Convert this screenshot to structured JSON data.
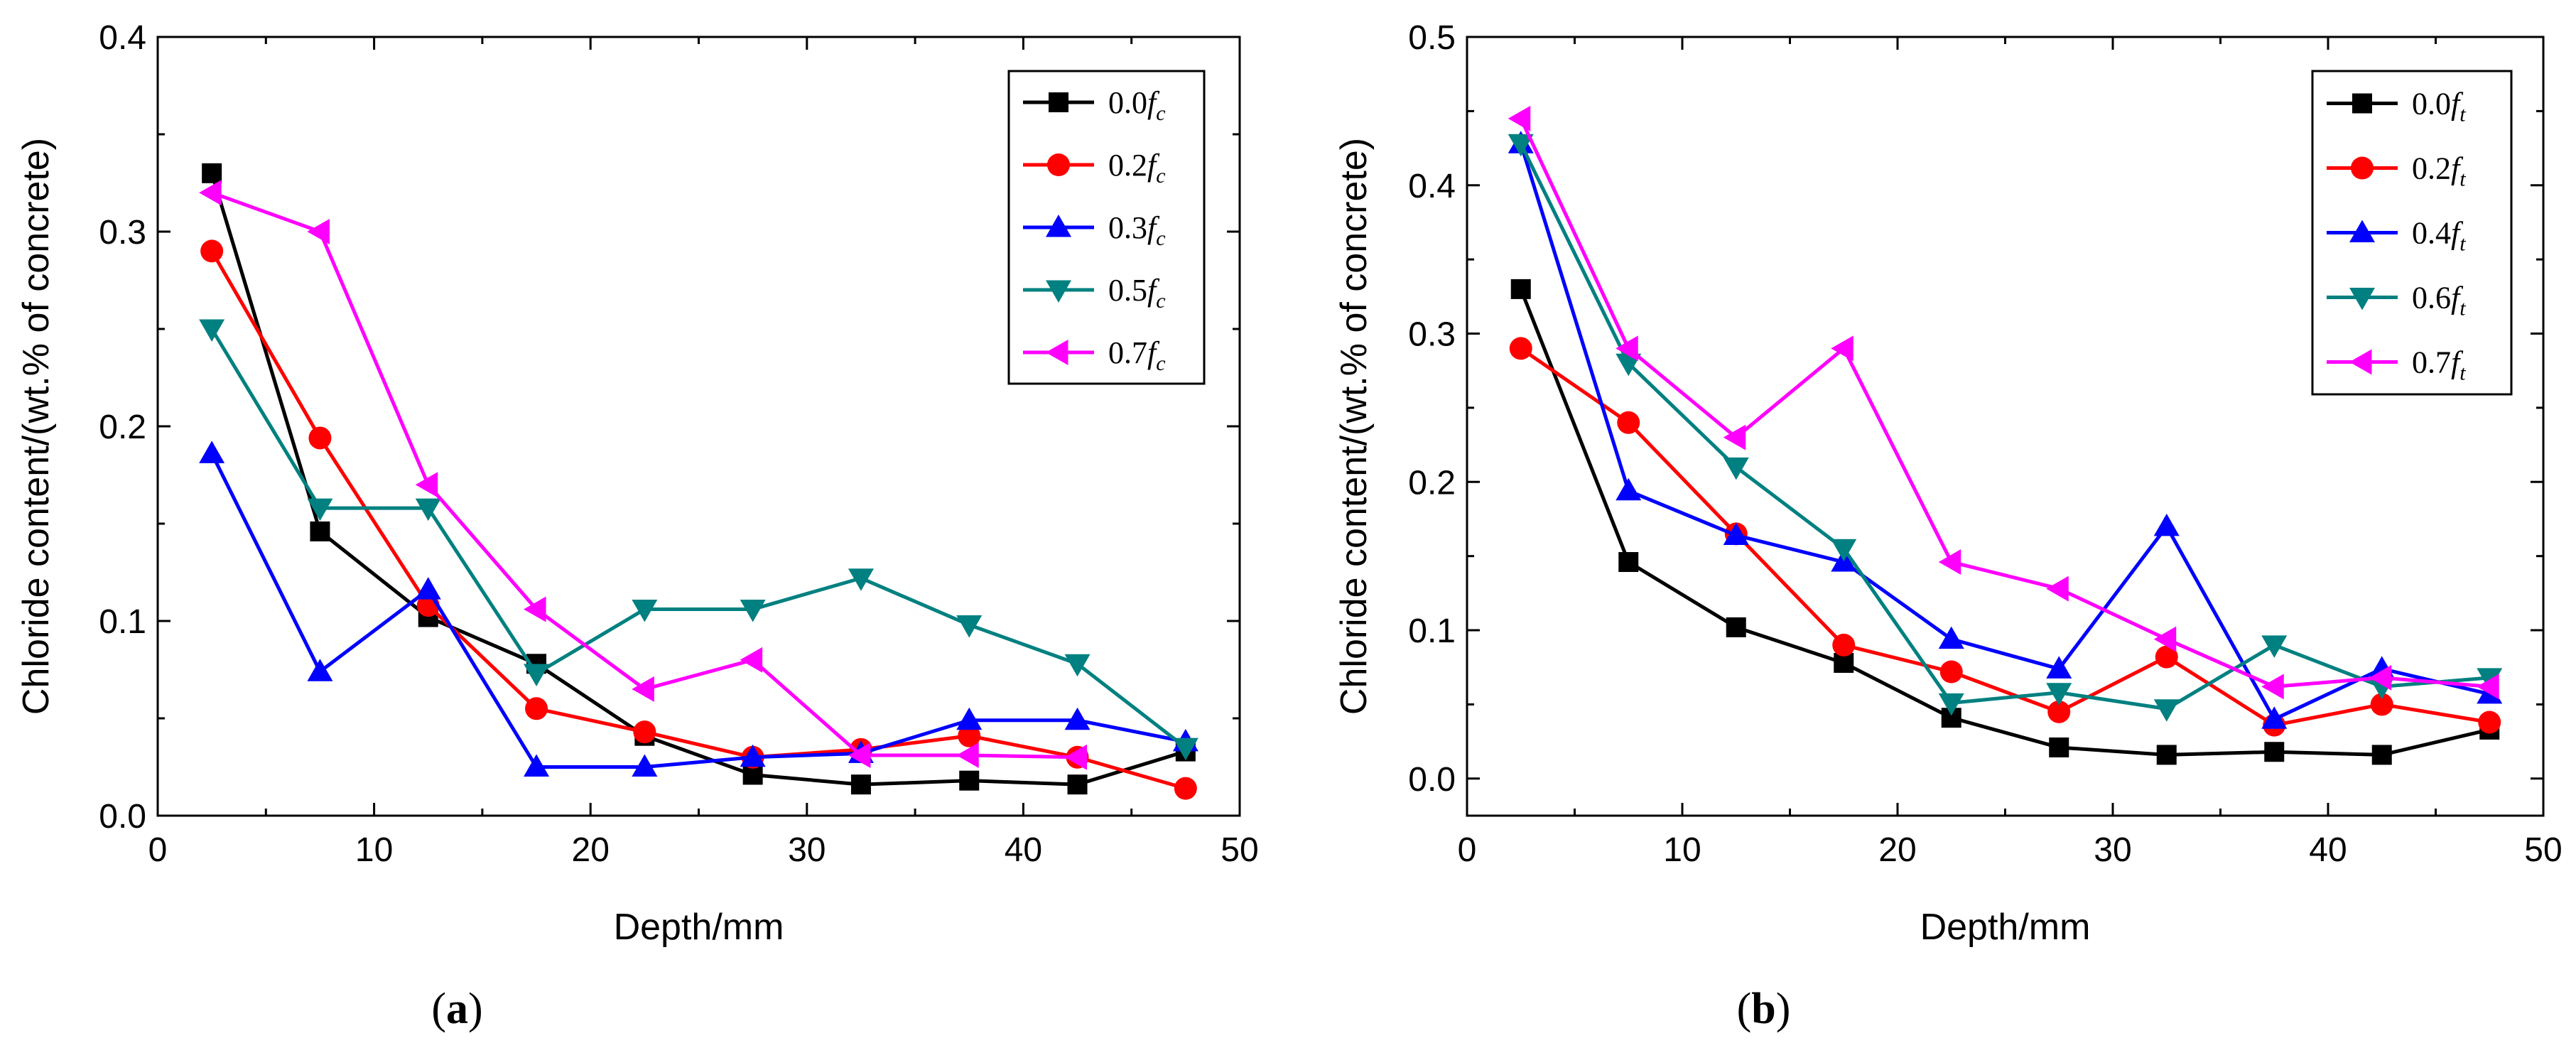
{
  "chart_data": [
    {
      "type": "line",
      "panel_label": "(a)",
      "xlabel": "Depth/mm",
      "ylabel": "Chloride content/(wt.% of concrete)",
      "xlim": [
        0,
        50
      ],
      "ylim": [
        0,
        0.4
      ],
      "xticks": [
        0,
        10,
        20,
        30,
        40,
        50
      ],
      "yticks": [
        0.0,
        0.1,
        0.2,
        0.3,
        0.4
      ],
      "ytick_labels": [
        "0.0",
        "0.1",
        "0.2",
        "0.3",
        "0.4"
      ],
      "legend_position": "top-right",
      "x": [
        2.5,
        7.5,
        12.5,
        17.5,
        22.5,
        27.5,
        32.5,
        37.5,
        42.5,
        47.5
      ],
      "series": [
        {
          "name": "0.0",
          "sub": "c",
          "color": "#000000",
          "marker": "square",
          "values": [
            0.33,
            0.146,
            0.102,
            0.078,
            0.041,
            0.021,
            0.016,
            0.018,
            0.016,
            0.033
          ]
        },
        {
          "name": "0.2",
          "sub": "c",
          "color": "#ff0000",
          "marker": "circle",
          "values": [
            0.29,
            0.194,
            0.108,
            0.055,
            0.043,
            0.03,
            0.034,
            0.041,
            0.03,
            0.014
          ]
        },
        {
          "name": "0.3",
          "sub": "c",
          "color": "#0000ff",
          "marker": "triangle-up",
          "values": [
            0.186,
            0.074,
            0.116,
            0.025,
            0.025,
            0.03,
            0.032,
            0.049,
            0.049,
            0.038
          ]
        },
        {
          "name": "0.5",
          "sub": "c",
          "color": "#008080",
          "marker": "triangle-down",
          "values": [
            0.25,
            0.158,
            0.158,
            0.073,
            0.106,
            0.106,
            0.122,
            0.098,
            0.078,
            0.035
          ]
        },
        {
          "name": "0.7",
          "sub": "c",
          "color": "#ff00ff",
          "marker": "triangle-left",
          "values": [
            0.32,
            0.3,
            0.17,
            0.106,
            0.065,
            0.08,
            0.031,
            0.031,
            0.03,
            null
          ]
        }
      ]
    },
    {
      "type": "line",
      "panel_label": "(b)",
      "xlabel": "Depth/mm",
      "ylabel": "Chloride content/(wt.% of concrete)",
      "xlim": [
        0,
        50
      ],
      "ylim": [
        -0.025,
        0.5
      ],
      "xticks": [
        0,
        10,
        20,
        30,
        40,
        50
      ],
      "yticks": [
        0.0,
        0.1,
        0.2,
        0.3,
        0.4,
        0.5
      ],
      "ytick_labels": [
        "0.0",
        "0.1",
        "0.2",
        "0.3",
        "0.4",
        "0.5"
      ],
      "legend_position": "top-right",
      "x": [
        2.5,
        7.5,
        12.5,
        17.5,
        22.5,
        27.5,
        32.5,
        37.5,
        42.5,
        47.5
      ],
      "series": [
        {
          "name": "0.0",
          "sub": "t",
          "color": "#000000",
          "marker": "square",
          "values": [
            0.33,
            0.146,
            0.102,
            0.078,
            0.041,
            0.021,
            0.016,
            0.018,
            0.016,
            0.033
          ]
        },
        {
          "name": "0.2",
          "sub": "t",
          "color": "#ff0000",
          "marker": "circle",
          "values": [
            0.29,
            0.24,
            0.165,
            0.09,
            0.072,
            0.045,
            0.082,
            0.036,
            0.05,
            0.038
          ]
        },
        {
          "name": "0.4",
          "sub": "t",
          "color": "#0000ff",
          "marker": "triangle-up",
          "values": [
            0.428,
            0.194,
            0.164,
            0.146,
            0.094,
            0.074,
            0.17,
            0.04,
            0.074,
            0.057
          ]
        },
        {
          "name": "0.6",
          "sub": "t",
          "color": "#008080",
          "marker": "triangle-down",
          "values": [
            0.428,
            0.28,
            0.21,
            0.155,
            0.051,
            0.058,
            0.047,
            0.09,
            0.062,
            0.068
          ]
        },
        {
          "name": "0.7",
          "sub": "t",
          "color": "#ff00ff",
          "marker": "triangle-left",
          "values": [
            0.445,
            0.29,
            0.23,
            0.29,
            0.146,
            0.128,
            0.094,
            0.062,
            0.068,
            0.062
          ]
        }
      ]
    }
  ]
}
